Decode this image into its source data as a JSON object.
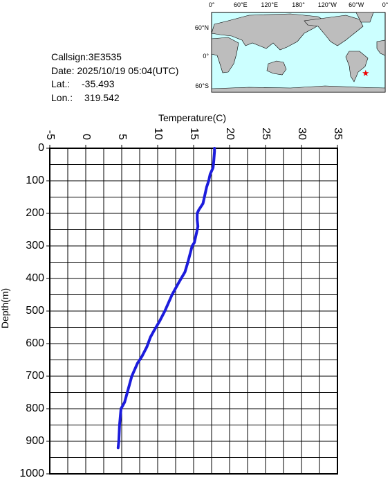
{
  "info": {
    "callsign": "Callsign:3E3535",
    "date": "Date:  2025/10/19 05:04(UTC)",
    "lat_label": "Lat.:",
    "lat": -35.493,
    "lon_label": "Lon.:",
    "lon": 319.542
  },
  "map": {
    "lon_labels": [
      "0°",
      "60°E",
      "120°E",
      "180°",
      "120°W",
      "60°W",
      "0°"
    ],
    "lat_labels": [
      "60°N",
      "0°",
      "60°S"
    ]
  },
  "chart_data": {
    "type": "line",
    "xlabel": "Temperature(C)",
    "ylabel": "Depth(m)",
    "xlim": [
      -5,
      35
    ],
    "ylim": [
      0,
      1000
    ],
    "y_reversed": true,
    "xticks": [
      -5,
      0,
      5,
      10,
      15,
      20,
      25,
      30,
      35
    ],
    "yticks": [
      0,
      100,
      200,
      300,
      400,
      500,
      600,
      700,
      800,
      900,
      1000
    ],
    "xgrid": [
      -2.5,
      2.5,
      7.5,
      12.5,
      17.5,
      22.5,
      27.5,
      32.5
    ],
    "ygrid": [
      50,
      150,
      250,
      350,
      450,
      550,
      650,
      750,
      850,
      950
    ],
    "grid": true,
    "series": [
      {
        "color": "#1c1cdc",
        "depth": [
          0,
          10,
          40,
          60,
          80,
          100,
          120,
          150,
          170,
          190,
          200,
          220,
          240,
          260,
          290,
          300,
          350,
          380,
          410,
          450,
          500,
          530,
          560,
          580,
          610,
          640,
          660,
          700,
          740,
          780,
          800,
          850,
          900,
          920
        ],
        "values": [
          17.9,
          17.9,
          17.8,
          17.7,
          17.3,
          17.1,
          16.8,
          16.5,
          16.3,
          15.7,
          15.5,
          15.5,
          15.6,
          15.4,
          15.1,
          14.8,
          14.2,
          13.8,
          13.0,
          12.0,
          11.0,
          10.3,
          9.5,
          9.0,
          8.5,
          7.8,
          7.2,
          6.4,
          5.9,
          5.4,
          4.9,
          4.7,
          4.6,
          4.5
        ]
      }
    ]
  }
}
